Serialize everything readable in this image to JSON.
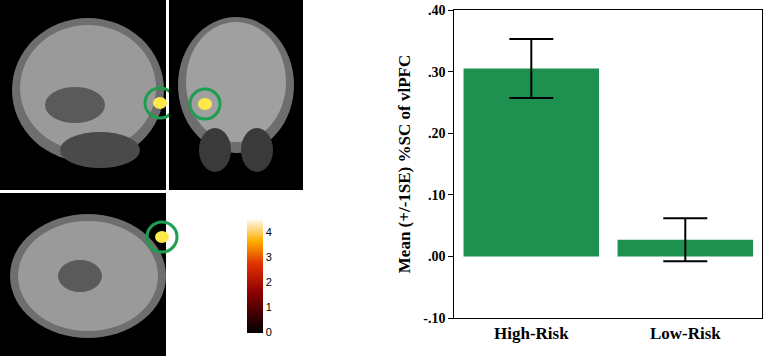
{
  "chart_data": [
    {
      "type": "bar",
      "categories": [
        "High-Risk",
        "Low-Risk"
      ],
      "values": [
        0.305,
        0.027
      ],
      "errors": [
        0.048,
        0.035
      ],
      "color": "#1e9150",
      "y_label": "Mean (+/-1SE) %SC of vlPFC",
      "ylim": [
        -0.1,
        0.4
      ],
      "yticks": [
        {
          "value": -0.1,
          "label": "-.10"
        },
        {
          "value": 0,
          "label": ".00"
        },
        {
          "value": 0.1,
          "label": ".10"
        },
        {
          "value": 0.2,
          "label": ".20"
        },
        {
          "value": 0.3,
          "label": ".30"
        },
        {
          "value": 0.4,
          "label": ".40"
        }
      ],
      "grid": false
    },
    {
      "type": "colorbar",
      "colorbar_range": [
        0,
        4.6
      ],
      "colorbar_ticks": [
        0,
        1,
        2,
        3,
        4
      ]
    }
  ]
}
